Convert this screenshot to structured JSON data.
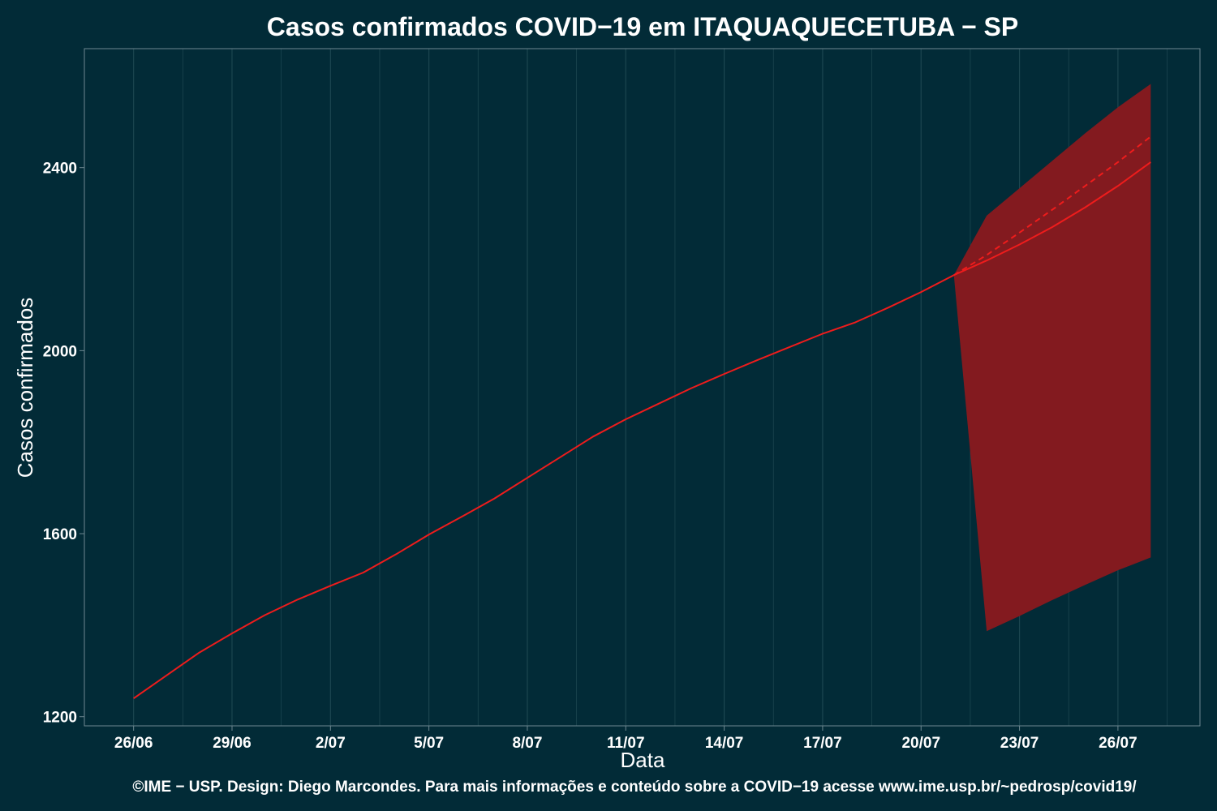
{
  "chart_data": {
    "type": "line",
    "title": "Casos confirmados COVID−19 em ITAQUAQUECETUBA − SP",
    "xlabel": "Data",
    "ylabel": "Casos confirmados",
    "caption": "©IME − USP. Design: Diego Marcondes. Para mais informações e conteúdo sobre a COVID−19 acesse www.ime.usp.br/~pedrosp/covid19/",
    "x_range_days": [
      -1.5,
      32.5
    ],
    "ylim": [
      1180,
      2660
    ],
    "x_ticks": [
      {
        "day": 0,
        "label": "26/06"
      },
      {
        "day": 3,
        "label": "29/06"
      },
      {
        "day": 6,
        "label": "2/07"
      },
      {
        "day": 9,
        "label": "5/07"
      },
      {
        "day": 12,
        "label": "8/07"
      },
      {
        "day": 15,
        "label": "11/07"
      },
      {
        "day": 18,
        "label": "14/07"
      },
      {
        "day": 21,
        "label": "17/07"
      },
      {
        "day": 24,
        "label": "20/07"
      },
      {
        "day": 27,
        "label": "23/07"
      },
      {
        "day": 30,
        "label": "26/07"
      }
    ],
    "y_ticks": [
      {
        "value": 1200,
        "label": "1200"
      },
      {
        "value": 1600,
        "label": "1600"
      },
      {
        "value": 2000,
        "label": "2000"
      },
      {
        "value": 2400,
        "label": "2400"
      }
    ],
    "series": [
      {
        "name": "observed",
        "style": "solid",
        "x": [
          0,
          1,
          2,
          3,
          4,
          5,
          6,
          7,
          8,
          9,
          10,
          11,
          12,
          13,
          14,
          15,
          16,
          17,
          18,
          19,
          20,
          21,
          22,
          23,
          24,
          25
        ],
        "values": [
          1240,
          1290,
          1340,
          1382,
          1422,
          1456,
          1486,
          1515,
          1555,
          1598,
          1637,
          1677,
          1722,
          1767,
          1812,
          1850,
          1884,
          1918,
          1949,
          1979,
          2008,
          2037,
          2062,
          2094,
          2128,
          2165
        ]
      },
      {
        "name": "forecast",
        "style": "solid",
        "x": [
          25,
          26,
          27,
          28,
          29,
          30,
          31
        ],
        "values": [
          2165,
          2197,
          2232,
          2270,
          2313,
          2360,
          2412
        ]
      },
      {
        "name": "forecast-alt",
        "style": "dashed",
        "x": [
          25,
          26,
          27,
          28,
          29,
          30,
          31
        ],
        "values": [
          2165,
          2209,
          2258,
          2308,
          2360,
          2412,
          2468
        ]
      }
    ],
    "band": {
      "name": "prediction-interval",
      "x": [
        25,
        26,
        27,
        28,
        29,
        30,
        31
      ],
      "upper": [
        2165,
        2295,
        2355,
        2415,
        2475,
        2532,
        2583
      ],
      "lower": [
        2165,
        1387,
        1420,
        1455,
        1488,
        1520,
        1548
      ]
    },
    "colors": {
      "background": "#022b37",
      "grid": "#1c4650",
      "frame": "#6d8790",
      "line": "#ee1c1c",
      "band": "#831a1f"
    }
  }
}
